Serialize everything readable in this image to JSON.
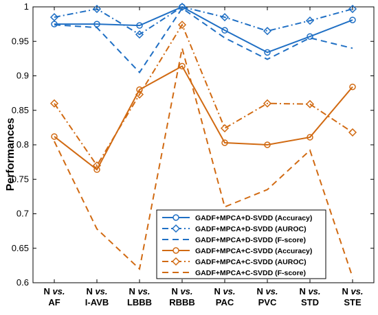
{
  "chart_data": {
    "type": "line",
    "title": "",
    "xlabel": "",
    "ylabel": "Performances",
    "ylim": [
      0.6,
      1.0
    ],
    "yticks": [
      "0.6",
      "0.65",
      "0.7",
      "0.75",
      "0.8",
      "0.85",
      "0.9",
      "0.95",
      "1"
    ],
    "categories": [
      {
        "prefix": "N",
        "vs": "vs.",
        "label": "AF"
      },
      {
        "prefix": "N",
        "vs": "vs.",
        "label": "I-AVB"
      },
      {
        "prefix": "N",
        "vs": "vs.",
        "label": "LBBB"
      },
      {
        "prefix": "N",
        "vs": "vs.",
        "label": "RBBB"
      },
      {
        "prefix": "N",
        "vs": "vs.",
        "label": "PAC"
      },
      {
        "prefix": "N",
        "vs": "vs.",
        "label": "PVC"
      },
      {
        "prefix": "N",
        "vs": "vs.",
        "label": "STD"
      },
      {
        "prefix": "N",
        "vs": "vs.",
        "label": "STE"
      }
    ],
    "grid": false,
    "legend_position": "bottom-right",
    "series": [
      {
        "name": "GADF+MPCA+D-SVDD (Accuracy)",
        "color": "#1f6fc4",
        "style": "solid",
        "marker": "circle",
        "values": [
          0.975,
          0.975,
          0.973,
          1.0,
          0.966,
          0.934,
          0.957,
          0.981
        ]
      },
      {
        "name": "GADF+MPCA+D-SVDD (AUROC)",
        "color": "#1f6fc4",
        "style": "dashdot",
        "marker": "diamond",
        "values": [
          0.985,
          0.997,
          0.96,
          1.0,
          0.985,
          0.965,
          0.98,
          0.997
        ]
      },
      {
        "name": "GADF+MPCA+D-SVDD (F-score)",
        "color": "#1f6fc4",
        "style": "dashed",
        "marker": "none",
        "values": [
          0.974,
          0.97,
          0.905,
          0.998,
          0.955,
          0.924,
          0.955,
          0.94
        ]
      },
      {
        "name": "GADF+MPCA+C-SVDD (Accuracy)",
        "color": "#d16a12",
        "style": "solid",
        "marker": "circle",
        "values": [
          0.812,
          0.764,
          0.88,
          0.914,
          0.803,
          0.8,
          0.811,
          0.884
        ]
      },
      {
        "name": "GADF+MPCA+C-SVDD (AUROC)",
        "color": "#d16a12",
        "style": "dashdot",
        "marker": "diamond",
        "values": [
          0.86,
          0.77,
          0.873,
          0.974,
          0.824,
          0.86,
          0.859,
          0.818
        ]
      },
      {
        "name": "GADF+MPCA+C-SVDD (F-score)",
        "color": "#d16a12",
        "style": "dashed",
        "marker": "none",
        "values": [
          0.805,
          0.678,
          0.62,
          0.94,
          0.71,
          0.735,
          0.792,
          0.608
        ]
      }
    ]
  }
}
